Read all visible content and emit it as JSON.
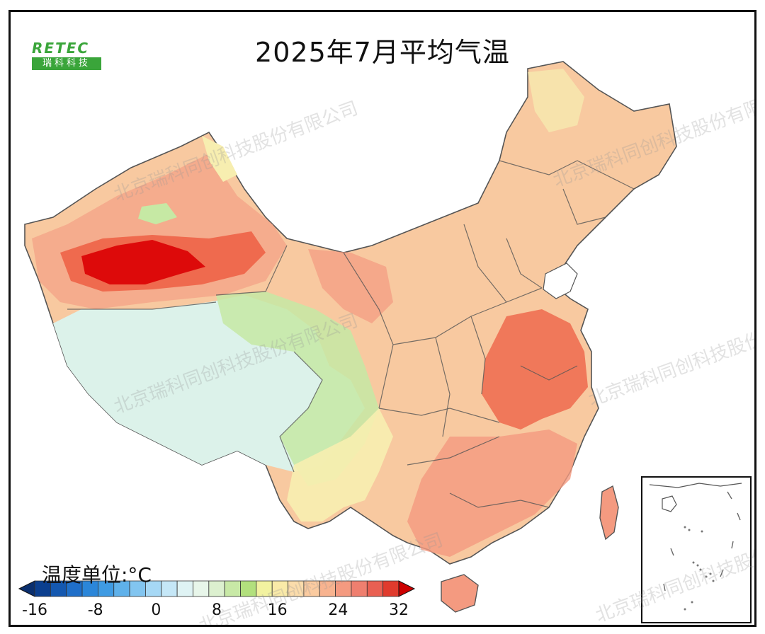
{
  "title": "2025年7月平均气温",
  "logo": {
    "top": "RETEC",
    "bottom": "瑞科科技"
  },
  "unit_label": "温度单位:°C",
  "watermark": "北京瑞科同创科技股份有限公司",
  "colorbar": {
    "ticks": [
      "-16",
      "-8",
      "0",
      "8",
      "16",
      "24",
      "32"
    ],
    "colors": [
      "#0b3f8f",
      "#1458b0",
      "#1f6fc9",
      "#2b86d9",
      "#3f9be3",
      "#5fb1ea",
      "#82c5f0",
      "#a6d8f5",
      "#c5e7f7",
      "#dff3f4",
      "#e8f6ea",
      "#dcf0cf",
      "#c8e9a6",
      "#b2e07d",
      "#f2f2a0",
      "#faeaa8",
      "#fbdcab",
      "#fbcba0",
      "#f8b38f",
      "#f49a80",
      "#ef7f6f",
      "#e96052",
      "#e03b2d"
    ],
    "under_color": "#0a2f6e",
    "over_color": "#cc0000"
  },
  "map_colors": {
    "hot_core": "#dd0a0a",
    "hot": "#ef6a4e",
    "warm": "#f49a80",
    "mild": "#f8c9a0",
    "cool": "#f7eeb0",
    "green": "#c6e9a4",
    "cold": "#dcf2ea"
  }
}
